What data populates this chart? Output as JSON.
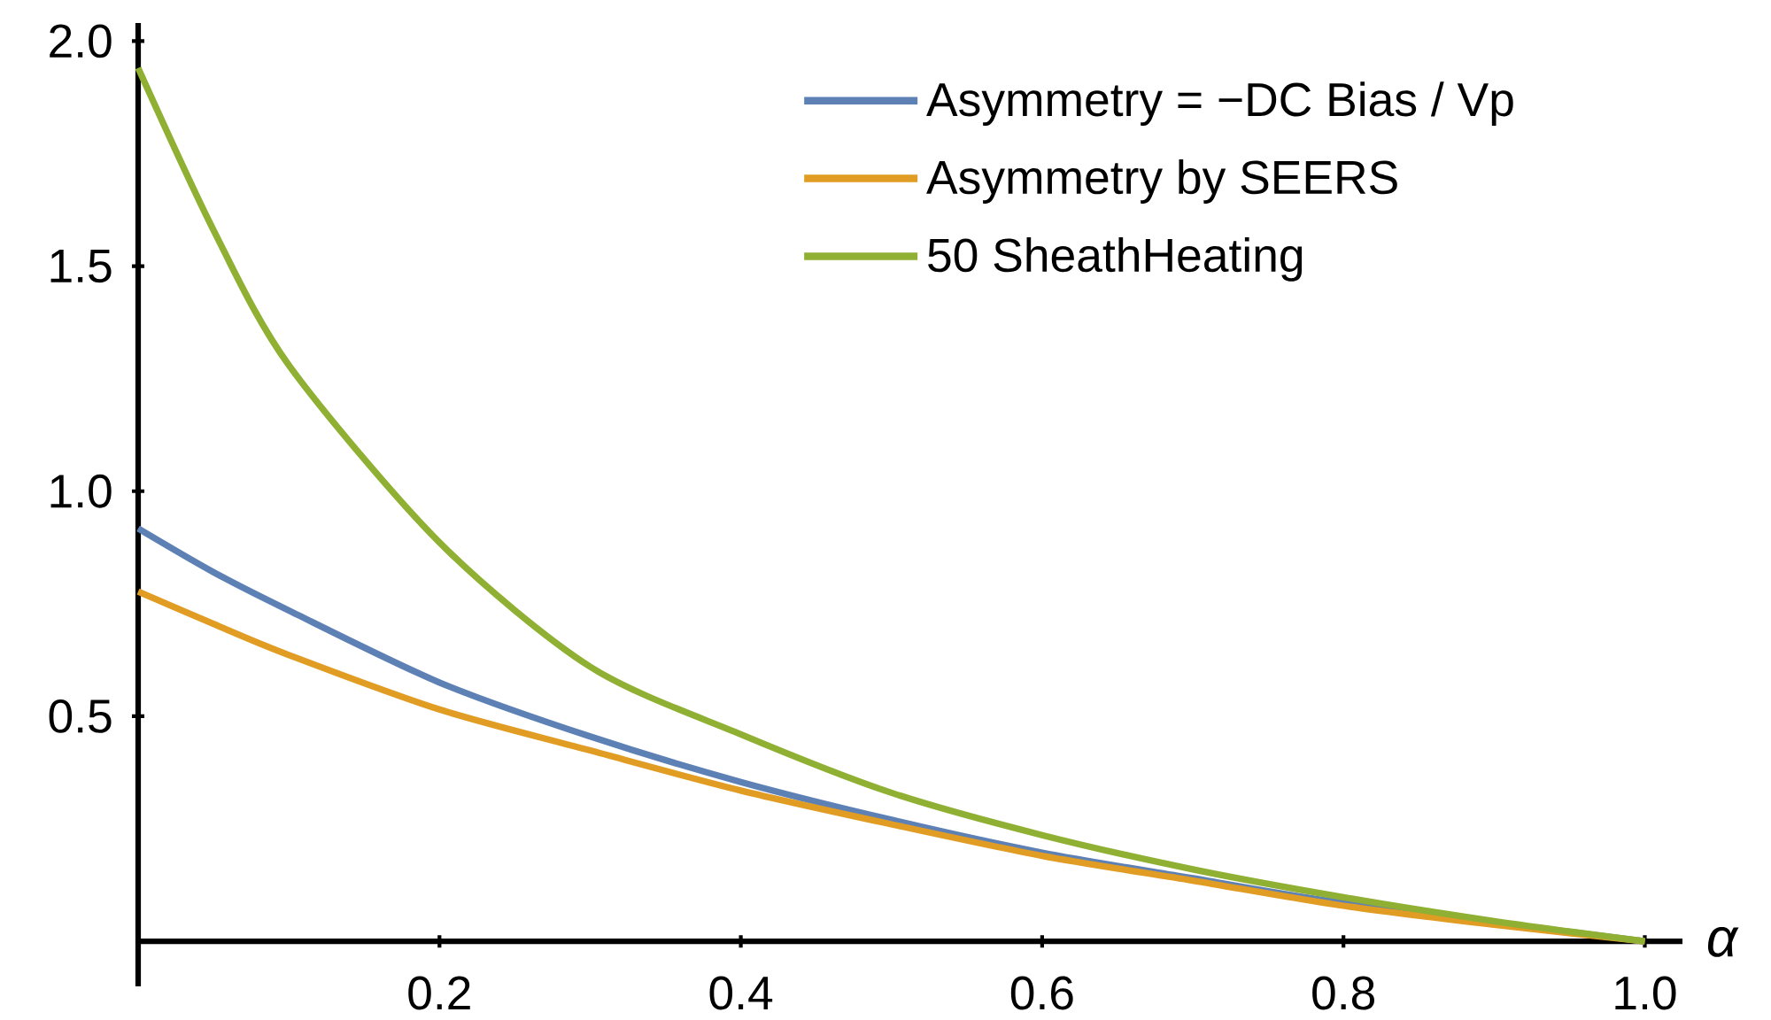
{
  "chart_data": {
    "type": "line",
    "xlabel": "α",
    "x": [
      0,
      0.05,
      0.1,
      0.2,
      0.3,
      0.4,
      0.5,
      0.6,
      0.7,
      0.8,
      0.9,
      1.0
    ],
    "series": [
      {
        "name": "Asymmetry = −DC Bias / Vp",
        "color": "#5e81b5",
        "values": [
          0.917,
          0.82,
          0.735,
          0.575,
          0.455,
          0.354,
          0.27,
          0.197,
          0.14,
          0.085,
          null,
          0
        ]
      },
      {
        "name": "Asymmetry by SEERS",
        "color": "#e19c24",
        "values": [
          0.777,
          0.705,
          0.636,
          0.515,
          0.424,
          0.335,
          0.26,
          0.19,
          0.135,
          0.079,
          0.037,
          0
        ]
      },
      {
        "name": "50 SheathHeating",
        "color": "#8fb032",
        "values": [
          1.94,
          1.58,
          1.28,
          0.886,
          0.61,
          0.46,
          0.33,
          0.236,
          0.16,
          0.098,
          0.045,
          0
        ]
      }
    ],
    "xlim": [
      0,
      1.025
    ],
    "ylim": [
      -0.1,
      2.04
    ],
    "xticks": [
      0.2,
      0.4,
      0.6,
      0.8,
      {
        "value": 1.0,
        "label": "1.0"
      }
    ],
    "yticks": [
      0.5,
      {
        "value": 1.0,
        "label": "1.0"
      },
      1.5,
      {
        "value": 2.0,
        "label": "2.0"
      }
    ],
    "legend": "top right"
  }
}
